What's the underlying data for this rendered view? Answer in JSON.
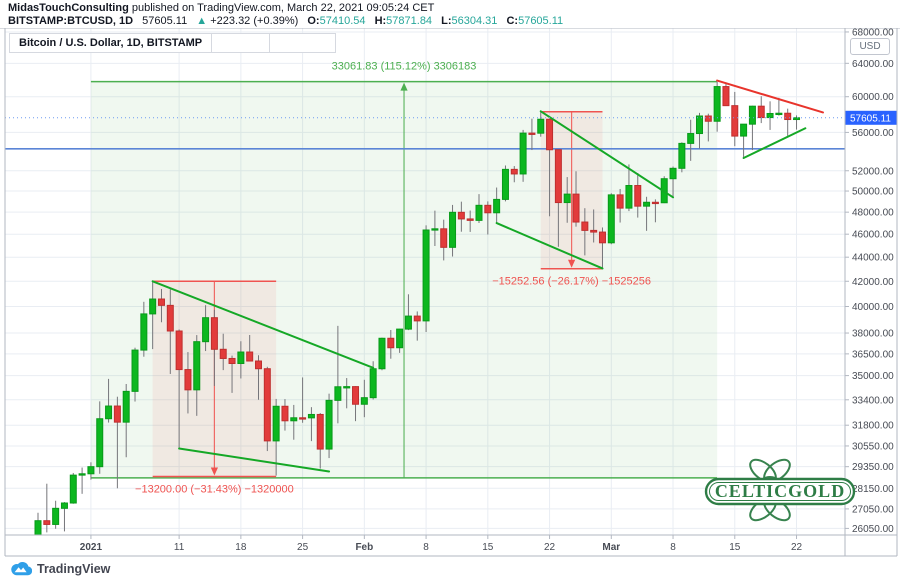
{
  "header": {
    "author": "MidasTouchConsulting",
    "published": " published on TradingView.com, March 22, 2021 09:05:24 CET",
    "symbol": "BITSTAMP:BTCUSD, 1D",
    "last_price": "57605.11",
    "change_arrow": "▲",
    "change": "+223.32 (+0.39%)",
    "ohlc": [
      {
        "k": "O:",
        "v": "57410.54"
      },
      {
        "k": "H:",
        "v": "57871.84"
      },
      {
        "k": "L:",
        "v": "56304.31"
      },
      {
        "k": "C:",
        "v": "57605.11"
      }
    ]
  },
  "legend": {
    "title": "Bitcoin / U.S. Dollar, 1D, BITSTAMP"
  },
  "price_axis": {
    "currency_button": "USD",
    "current_price_label": "57605.11"
  },
  "watermark": {
    "text": "CELTICGOLD",
    "color": "#2e7d46"
  },
  "footer": {
    "brand": "TradingView"
  },
  "colors": {
    "up_fill": "#0cb71f",
    "up_border": "#089a19",
    "down_fill": "#e23b3b",
    "down_border": "#bf2e2e",
    "wick": "#75757a",
    "measure_green": "#4caf50",
    "measure_red": "#ef5350",
    "trend_green": "#15a826",
    "trend_red": "#e8342c",
    "support_blue": "#5b85d6",
    "price_line": "#6e9bf0",
    "price_label_bg": "#2962ff",
    "grid": "#e9edf3",
    "axis_text": "#474b54",
    "frame": "#b2b7c1",
    "value_teal": "#26a69a"
  },
  "chart_data": {
    "type": "candlestick",
    "symbol": "BITSTAMP:BTCUSD",
    "timeframe": "1D",
    "scale": "log",
    "title": "Bitcoin / U.S. Dollar, 1D, BITSTAMP",
    "start_date": "2020-12-26",
    "current_price": 57605.11,
    "support_line_price": 54250,
    "y_ticks": [
      68000,
      64000,
      60000,
      56000,
      52000,
      50000,
      48000,
      46000,
      44000,
      42000,
      40000,
      38000,
      36500,
      35000,
      33400,
      31800,
      30550,
      29350,
      28150,
      27050,
      26050
    ],
    "x_labels": [
      {
        "t": "2021",
        "d": 6,
        "bold": true
      },
      {
        "t": "11",
        "d": 16
      },
      {
        "t": "18",
        "d": 23
      },
      {
        "t": "25",
        "d": 30
      },
      {
        "t": "Feb",
        "d": 37,
        "bold": true
      },
      {
        "t": "8",
        "d": 44
      },
      {
        "t": "15",
        "d": 51
      },
      {
        "t": "22",
        "d": 58
      },
      {
        "t": "Mar",
        "d": 65,
        "bold": true
      },
      {
        "t": "8",
        "d": 72
      },
      {
        "t": "15",
        "d": 79
      },
      {
        "t": "22",
        "d": 86
      }
    ],
    "candles": [
      [
        24700,
        26850,
        24500,
        26440
      ],
      [
        26440,
        28400,
        25850,
        26250
      ],
      [
        26250,
        27480,
        26030,
        27080
      ],
      [
        27080,
        27410,
        25900,
        27360
      ],
      [
        27360,
        28996,
        27320,
        28875
      ],
      [
        28875,
        29300,
        27850,
        28950
      ],
      [
        28950,
        29600,
        28624,
        29350
      ],
      [
        29350,
        33300,
        28950,
        32200
      ],
      [
        32200,
        34778,
        31962,
        33000
      ],
      [
        33000,
        33600,
        28150,
        31988
      ],
      [
        31988,
        34437,
        29890,
        33949
      ],
      [
        33949,
        36939,
        33288,
        36769
      ],
      [
        36769,
        40365,
        36300,
        39432
      ],
      [
        39432,
        41950,
        36838,
        40582
      ],
      [
        40582,
        41380,
        38800,
        40088
      ],
      [
        40088,
        41350,
        35111,
        38150
      ],
      [
        38150,
        38264,
        30420,
        35410
      ],
      [
        35410,
        36628,
        32531,
        34049
      ],
      [
        34049,
        37850,
        32380,
        37371
      ],
      [
        37371,
        40100,
        36701,
        39144
      ],
      [
        39144,
        39747,
        34308,
        36825
      ],
      [
        36825,
        37950,
        35372,
        36178
      ],
      [
        36178,
        36378,
        33850,
        35828
      ],
      [
        35828,
        37402,
        34806,
        36631
      ],
      [
        36631,
        37857,
        36120,
        36000
      ],
      [
        36000,
        36400,
        33400,
        35468
      ],
      [
        35468,
        35600,
        30250,
        30850
      ],
      [
        30850,
        33456,
        28850,
        32985
      ],
      [
        32985,
        33445,
        31470,
        32072
      ],
      [
        32072,
        33071,
        30920,
        32259
      ],
      [
        32259,
        34875,
        31950,
        32254
      ],
      [
        32254,
        32929,
        30837,
        32467
      ],
      [
        32467,
        32557,
        29241,
        30366
      ],
      [
        30366,
        33800,
        29842,
        33364
      ],
      [
        33364,
        38531,
        31915,
        34252
      ],
      [
        34252,
        34834,
        32855,
        34262
      ],
      [
        34262,
        34288,
        32050,
        33114
      ],
      [
        33114,
        34717,
        32296,
        33537
      ],
      [
        33537,
        35984,
        33418,
        35466
      ],
      [
        35466,
        37662,
        35362,
        37618
      ],
      [
        37618,
        38225,
        36161,
        36936
      ],
      [
        36936,
        38310,
        36570,
        38290
      ],
      [
        38290,
        40955,
        38215,
        39266
      ],
      [
        39266,
        39621,
        37446,
        38903
      ],
      [
        38903,
        46794,
        38076,
        46374
      ],
      [
        46374,
        48142,
        44961,
        46481
      ],
      [
        46481,
        47310,
        43727,
        44845
      ],
      [
        44845,
        48678,
        44057,
        47986
      ],
      [
        47986,
        48985,
        46221,
        47376
      ],
      [
        47376,
        48150,
        46202,
        47244
      ],
      [
        47244,
        49703,
        47011,
        48639
      ],
      [
        48639,
        49011,
        45971,
        47944
      ],
      [
        47944,
        50341,
        47050,
        49199
      ],
      [
        49199,
        52533,
        49012,
        52140
      ],
      [
        52140,
        52474,
        50856,
        51679
      ],
      [
        51679,
        56273,
        50901,
        55923
      ],
      [
        55923,
        57505,
        54124,
        55917
      ],
      [
        55917,
        58350,
        55537,
        57443
      ],
      [
        57443,
        57508,
        47622,
        54155
      ],
      [
        54155,
        54155,
        44892,
        48899
      ],
      [
        48899,
        51369,
        47027,
        49705
      ],
      [
        49705,
        51948,
        46674,
        47093
      ],
      [
        47093,
        48370,
        44152,
        46339
      ],
      [
        46339,
        48253,
        45269,
        46188
      ],
      [
        46188,
        46602,
        43016,
        45240
      ],
      [
        45240,
        49784,
        45115,
        49631
      ],
      [
        49631,
        50200,
        47047,
        48378
      ],
      [
        48378,
        52640,
        48100,
        50538
      ],
      [
        50538,
        51773,
        47500,
        48561
      ],
      [
        48561,
        49448,
        46300,
        48927
      ],
      [
        48927,
        49200,
        47070,
        48882
      ],
      [
        48882,
        51450,
        48850,
        51206
      ],
      [
        51206,
        52425,
        49328,
        52246
      ],
      [
        52246,
        54936,
        51845,
        54824
      ],
      [
        54824,
        57387,
        53005,
        55879
      ],
      [
        55879,
        58150,
        54272,
        57805
      ],
      [
        57805,
        58063,
        55033,
        57221
      ],
      [
        57221,
        61750,
        56078,
        61188
      ],
      [
        61188,
        61675,
        58966,
        58972
      ],
      [
        58972,
        60559,
        54530,
        55605
      ],
      [
        55605,
        56900,
        53221,
        56900
      ],
      [
        56900,
        58960,
        54121,
        58912
      ],
      [
        58912,
        60060,
        57020,
        57628
      ],
      [
        57628,
        59468,
        56270,
        58086
      ],
      [
        58086,
        59880,
        57844,
        58115
      ],
      [
        58115,
        58633,
        55616,
        57412
      ],
      [
        57412,
        57872,
        56304,
        57605
      ]
    ],
    "measurements": [
      {
        "kind": "range-up",
        "label": "33061.83 (115.12%) 3306183",
        "d1": 6,
        "d2": 77,
        "p1": 28719,
        "p2": 61780
      },
      {
        "kind": "range-down",
        "label": "−13200.00 (−31.43%) −1320000",
        "d1": 13,
        "d2": 27,
        "p1": 42000,
        "p2": 28800
      },
      {
        "kind": "range-down",
        "label": "−15252.56 (−26.17%) −1525256",
        "d1": 57,
        "d2": 64,
        "p1": 58280,
        "p2": 43028
      }
    ],
    "trendlines": [
      {
        "color": "green",
        "d1": 13,
        "p1": 42000,
        "d2": 38,
        "p2": 35530
      },
      {
        "color": "green",
        "d1": 16,
        "p1": 30400,
        "d2": 33,
        "p2": 29080
      },
      {
        "color": "green",
        "d1": 52,
        "p1": 47000,
        "d2": 64,
        "p2": 43050
      },
      {
        "color": "green",
        "d1": 57,
        "p1": 58330,
        "d2": 72,
        "p2": 49400
      },
      {
        "color": "green",
        "d1": 80,
        "p1": 53300,
        "d2": 87,
        "p2": 56450
      },
      {
        "color": "red",
        "d1": 77,
        "p1": 61900,
        "d2": 89,
        "p2": 58200
      }
    ]
  }
}
